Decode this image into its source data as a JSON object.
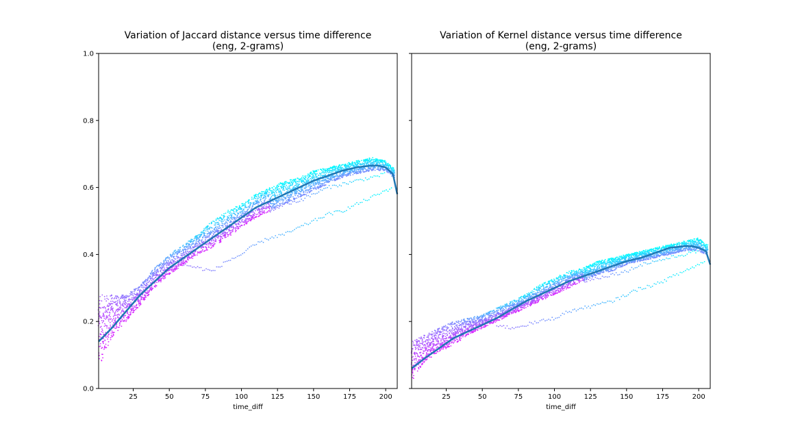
{
  "colors": {
    "scatter_low_time": "#ff00ff",
    "scatter_mid_time": "#8a7cff",
    "scatter_high_time": "#00ffff",
    "trend_line": "#1f77b4",
    "axes": "#000000"
  },
  "chart_data": [
    {
      "type": "scatter",
      "title": "Variation of Jaccard distance versus time difference",
      "subtitle": "(eng, 2-grams)",
      "xlabel": "time_diff",
      "ylabel": "",
      "xlim": [
        1,
        208
      ],
      "ylim": [
        0.0,
        1.0
      ],
      "xticks": [
        "25",
        "50",
        "75",
        "100",
        "125",
        "150",
        "175",
        "200"
      ],
      "yticks": [
        "0.0",
        "0.2",
        "0.4",
        "0.6",
        "0.8",
        "1.0"
      ],
      "grid": false,
      "colormap": "cool",
      "band": {
        "x": [
          1,
          10,
          20,
          30,
          40,
          50,
          60,
          70,
          80,
          90,
          100,
          110,
          120,
          130,
          140,
          150,
          160,
          170,
          180,
          190,
          200,
          205
        ],
        "lower": [
          0.06,
          0.15,
          0.2,
          0.25,
          0.3,
          0.34,
          0.37,
          0.4,
          0.42,
          0.45,
          0.48,
          0.51,
          0.53,
          0.55,
          0.57,
          0.59,
          0.61,
          0.63,
          0.64,
          0.65,
          0.65,
          0.63
        ],
        "upper": [
          0.28,
          0.28,
          0.28,
          0.31,
          0.36,
          0.4,
          0.43,
          0.46,
          0.5,
          0.53,
          0.55,
          0.58,
          0.6,
          0.62,
          0.63,
          0.65,
          0.66,
          0.67,
          0.68,
          0.69,
          0.68,
          0.66
        ]
      },
      "outlier_tracks": [
        {
          "x": [
            60,
            70,
            80,
            90,
            100,
            110,
            120,
            130,
            140,
            150,
            160,
            170,
            180,
            190,
            200,
            205
          ],
          "y": [
            0.37,
            0.36,
            0.35,
            0.38,
            0.4,
            0.43,
            0.45,
            0.46,
            0.48,
            0.5,
            0.52,
            0.53,
            0.55,
            0.57,
            0.59,
            0.6
          ]
        },
        {
          "x": [
            120,
            130,
            140,
            150,
            160,
            170,
            180,
            190,
            200
          ],
          "y": [
            0.53,
            0.55,
            0.56,
            0.58,
            0.6,
            0.61,
            0.62,
            0.63,
            0.64
          ]
        }
      ],
      "trend": {
        "x": [
          1,
          10,
          20,
          30,
          40,
          50,
          60,
          70,
          80,
          90,
          100,
          110,
          120,
          130,
          140,
          150,
          160,
          170,
          180,
          190,
          195,
          200,
          205,
          208
        ],
        "y": [
          0.14,
          0.18,
          0.23,
          0.28,
          0.32,
          0.36,
          0.39,
          0.42,
          0.45,
          0.48,
          0.51,
          0.54,
          0.56,
          0.58,
          0.6,
          0.62,
          0.635,
          0.65,
          0.66,
          0.665,
          0.665,
          0.66,
          0.64,
          0.58
        ]
      }
    },
    {
      "type": "scatter",
      "title": "Variation of Kernel distance versus time difference",
      "subtitle": "(eng, 2-grams)",
      "xlabel": "time_diff",
      "ylabel": "",
      "xlim": [
        1,
        208
      ],
      "ylim": [
        0.0,
        1.0
      ],
      "xticks": [
        "25",
        "50",
        "75",
        "100",
        "125",
        "150",
        "175",
        "200"
      ],
      "yticks": [],
      "grid": false,
      "colormap": "cool",
      "band": {
        "x": [
          1,
          10,
          20,
          30,
          40,
          50,
          60,
          70,
          80,
          90,
          100,
          110,
          120,
          130,
          140,
          150,
          160,
          170,
          180,
          190,
          200,
          205
        ],
        "lower": [
          0.02,
          0.08,
          0.11,
          0.13,
          0.16,
          0.18,
          0.2,
          0.22,
          0.24,
          0.26,
          0.28,
          0.3,
          0.32,
          0.34,
          0.35,
          0.37,
          0.38,
          0.39,
          0.4,
          0.41,
          0.41,
          0.4
        ],
        "upper": [
          0.14,
          0.16,
          0.18,
          0.2,
          0.21,
          0.22,
          0.24,
          0.26,
          0.28,
          0.31,
          0.33,
          0.35,
          0.36,
          0.38,
          0.39,
          0.4,
          0.41,
          0.42,
          0.43,
          0.44,
          0.45,
          0.43
        ]
      },
      "outlier_tracks": [
        {
          "x": [
            60,
            70,
            80,
            90,
            100,
            110,
            120,
            130,
            140,
            150,
            160,
            170,
            180,
            190,
            200,
            205
          ],
          "y": [
            0.19,
            0.18,
            0.19,
            0.2,
            0.21,
            0.23,
            0.24,
            0.25,
            0.26,
            0.28,
            0.3,
            0.31,
            0.33,
            0.35,
            0.37,
            0.38
          ]
        },
        {
          "x": [
            120,
            130,
            140,
            150,
            160,
            170,
            180,
            190,
            200
          ],
          "y": [
            0.32,
            0.33,
            0.34,
            0.35,
            0.37,
            0.38,
            0.39,
            0.4,
            0.41
          ]
        }
      ],
      "trend": {
        "x": [
          1,
          10,
          20,
          30,
          40,
          50,
          60,
          70,
          80,
          90,
          100,
          110,
          120,
          130,
          140,
          150,
          160,
          170,
          180,
          190,
          195,
          200,
          205,
          208
        ],
        "y": [
          0.06,
          0.09,
          0.12,
          0.15,
          0.17,
          0.19,
          0.21,
          0.235,
          0.26,
          0.28,
          0.3,
          0.32,
          0.335,
          0.35,
          0.365,
          0.38,
          0.39,
          0.405,
          0.42,
          0.425,
          0.425,
          0.42,
          0.41,
          0.37
        ]
      }
    }
  ]
}
